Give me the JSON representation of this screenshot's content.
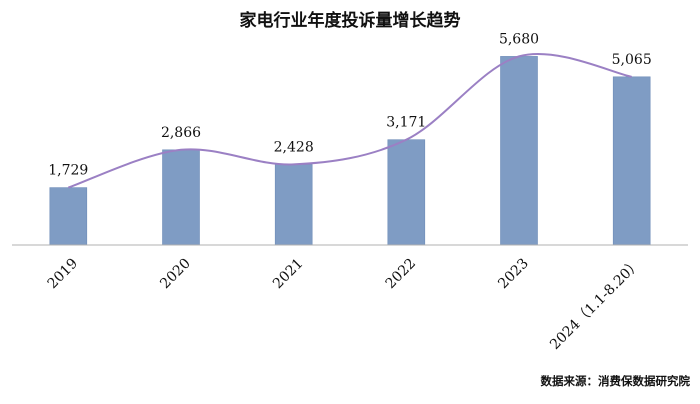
{
  "colors": {
    "bar": "#7f9cc4",
    "bar_edge": "#6f8db8",
    "line": "#9b80c4",
    "axis": "#b0b0b0"
  },
  "chart_data": {
    "type": "bar",
    "title": "家电行业年度投诉量增长趋势",
    "categories": [
      "2019",
      "2020",
      "2021",
      "2022",
      "2023",
      "2024（1.1-8.20）"
    ],
    "values": [
      1729,
      2866,
      2428,
      3171,
      5680,
      5065
    ],
    "data_labels": [
      "1,729",
      "2,866",
      "2,428",
      "3,171",
      "5,680",
      "5,065"
    ],
    "trend_line": {
      "type": "smoothed-line",
      "values": [
        1729,
        2866,
        2428,
        3171,
        5680,
        5065
      ]
    },
    "xlabel": "",
    "ylabel": "",
    "ylim": [
      0,
      6000
    ],
    "grid": false,
    "legend": "none"
  },
  "source": "数据来源：消费保数据研究院"
}
